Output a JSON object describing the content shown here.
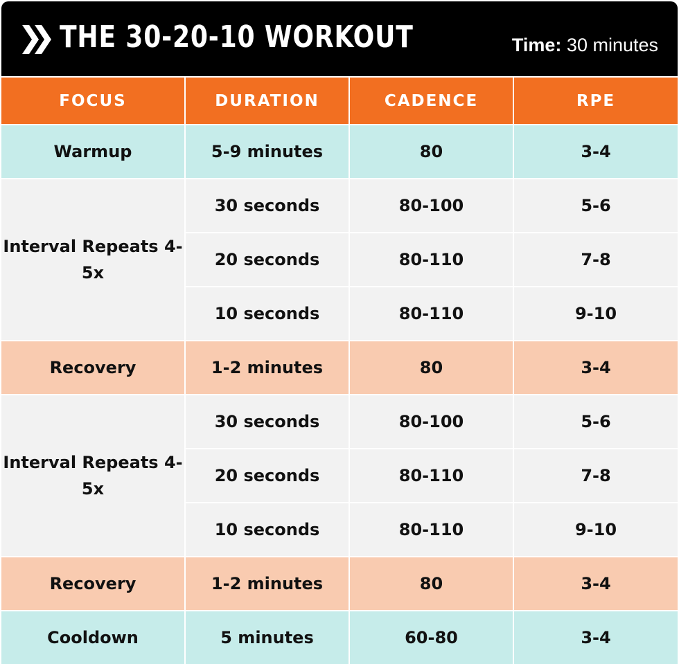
{
  "title": "THE 30-20-10 WORKOUT",
  "time_label": "Time:",
  "time_value": "30 minutes",
  "colors": {
    "header_bg": "#000000",
    "column_header_bg": "#f26f21",
    "warm_cool_row": "#c6ecea",
    "interval_row": "#f2f2f2",
    "recovery_row": "#f9cbb0"
  },
  "icon": "double-chevron-right-icon",
  "columns": [
    "FOCUS",
    "DURATION",
    "CADENCE",
    "RPE"
  ],
  "rows": [
    {
      "focus": "Warmup",
      "duration": "5-9 minutes",
      "cadence": "80",
      "rpe": "3-4"
    },
    {
      "focus": "Interval Repeats 4-5x",
      "duration": "30 seconds",
      "cadence": "80-100",
      "rpe": "5-6"
    },
    {
      "focus": "",
      "duration": "20 seconds",
      "cadence": "80-110",
      "rpe": "7-8"
    },
    {
      "focus": "",
      "duration": "10 seconds",
      "cadence": "80-110",
      "rpe": "9-10"
    },
    {
      "focus": "Recovery",
      "duration": "1-2 minutes",
      "cadence": "80",
      "rpe": "3-4"
    },
    {
      "focus": "Interval Repeats 4-5x",
      "duration": "30 seconds",
      "cadence": "80-100",
      "rpe": "5-6"
    },
    {
      "focus": "",
      "duration": "20 seconds",
      "cadence": "80-110",
      "rpe": "7-8"
    },
    {
      "focus": "",
      "duration": "10 seconds",
      "cadence": "80-110",
      "rpe": "9-10"
    },
    {
      "focus": "Recovery",
      "duration": "1-2 minutes",
      "cadence": "80",
      "rpe": "3-4"
    },
    {
      "focus": "Cooldown",
      "duration": "5 minutes",
      "cadence": "60-80",
      "rpe": "3-4"
    }
  ]
}
